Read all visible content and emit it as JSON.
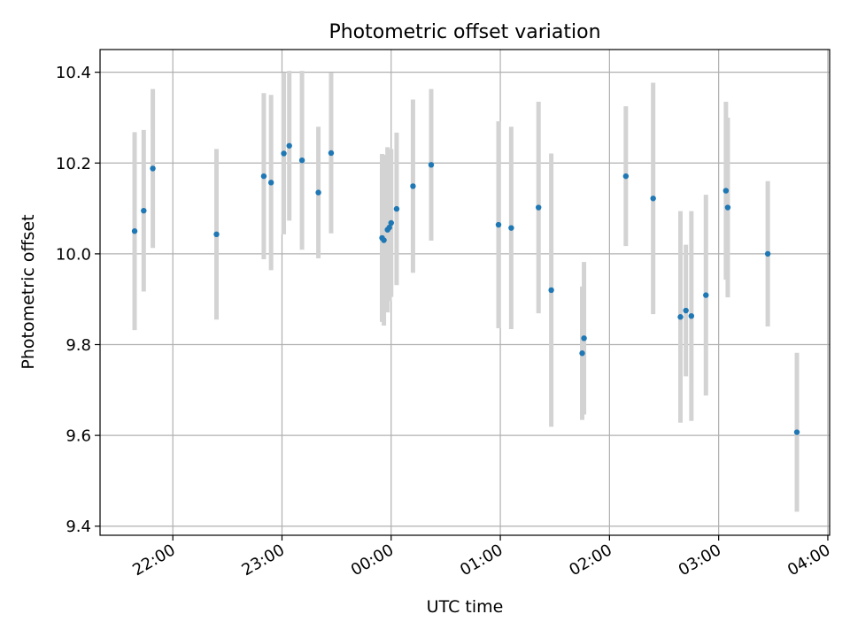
{
  "chart_data": {
    "type": "scatter",
    "title": "Photometric offset variation",
    "xlabel": "UTC time",
    "ylabel": "Photometric offset",
    "x_axis_kind": "time (UTC, HH:MM), spanning midnight",
    "xlim": [
      "21:20",
      "04:01"
    ],
    "ylim": [
      9.38,
      10.45
    ],
    "x_ticks": [
      "22:00",
      "23:00",
      "00:00",
      "01:00",
      "02:00",
      "03:00",
      "04:00"
    ],
    "y_ticks": [
      "9.4",
      "9.6",
      "9.8",
      "10.0",
      "10.2",
      "10.4"
    ],
    "grid": true,
    "point_color": "#1f77b4",
    "errorbar_color": "#d3d3d3",
    "series": [
      {
        "points": [
          {
            "t": "21:39",
            "y": 10.05,
            "err": 0.218
          },
          {
            "t": "21:44",
            "y": 10.095,
            "err": 0.178
          },
          {
            "t": "21:49",
            "y": 10.188,
            "err": 0.175
          },
          {
            "t": "22:24",
            "y": 10.043,
            "err": 0.188
          },
          {
            "t": "22:50",
            "y": 10.171,
            "err": 0.183
          },
          {
            "t": "22:54",
            "y": 10.157,
            "err": 0.193
          },
          {
            "t": "23:01",
            "y": 10.221,
            "err": 0.178
          },
          {
            "t": "23:04",
            "y": 10.238,
            "err": 0.165
          },
          {
            "t": "23:11",
            "y": 10.206,
            "err": 0.197
          },
          {
            "t": "23:20",
            "y": 10.135,
            "err": 0.145
          },
          {
            "t": "23:27",
            "y": 10.222,
            "err": 0.177
          },
          {
            "t": "23:55",
            "y": 10.035,
            "err": 0.185
          },
          {
            "t": "23:56",
            "y": 10.03,
            "err": 0.188
          },
          {
            "t": "23:58",
            "y": 10.053,
            "err": 0.182
          },
          {
            "t": "23:59",
            "y": 10.058,
            "err": 0.162
          },
          {
            "t": "00:00",
            "y": 10.068,
            "err": 0.163
          },
          {
            "t": "00:03",
            "y": 10.099,
            "err": 0.168
          },
          {
            "t": "00:12",
            "y": 10.149,
            "err": 0.191
          },
          {
            "t": "00:22",
            "y": 10.196,
            "err": 0.167
          },
          {
            "t": "00:59",
            "y": 10.064,
            "err": 0.228
          },
          {
            "t": "01:06",
            "y": 10.057,
            "err": 0.223
          },
          {
            "t": "01:21",
            "y": 10.102,
            "err": 0.233
          },
          {
            "t": "01:28",
            "y": 9.92,
            "err": 0.301
          },
          {
            "t": "01:45",
            "y": 9.781,
            "err": 0.147
          },
          {
            "t": "01:46",
            "y": 9.814,
            "err": 0.168
          },
          {
            "t": "02:09",
            "y": 10.171,
            "err": 0.154
          },
          {
            "t": "02:24",
            "y": 10.122,
            "err": 0.255
          },
          {
            "t": "02:39",
            "y": 9.861,
            "err": 0.233
          },
          {
            "t": "02:42",
            "y": 9.875,
            "err": 0.145
          },
          {
            "t": "02:45",
            "y": 9.863,
            "err": 0.231
          },
          {
            "t": "02:53",
            "y": 9.909,
            "err": 0.221
          },
          {
            "t": "03:04",
            "y": 10.139,
            "err": 0.196
          },
          {
            "t": "03:05",
            "y": 10.102,
            "err": 0.198
          },
          {
            "t": "03:27",
            "y": 10.0,
            "err": 0.16
          },
          {
            "t": "03:43",
            "y": 9.607,
            "err": 0.175
          }
        ]
      }
    ]
  }
}
